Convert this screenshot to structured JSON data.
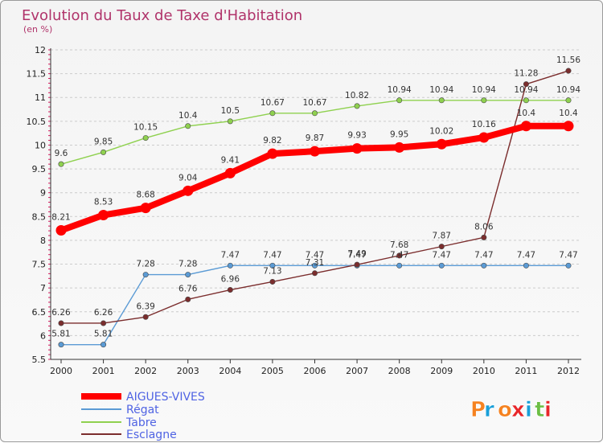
{
  "title": "Evolution du Taux de Taxe d'Habitation",
  "subtitle": "(en %)",
  "logo": "Proxiti",
  "colors": {
    "label_text": "#b0336a",
    "grid": "#cccccc",
    "minor_tick": "#d81b60",
    "legend_text": "#4f63e3"
  },
  "chart_data": {
    "type": "line",
    "title": "Evolution du Taux de Taxe d'Habitation",
    "ylabel": "(en %)",
    "xlabel": "",
    "x": [
      "2000",
      "2001",
      "2002",
      "2003",
      "2004",
      "2005",
      "2006",
      "2007",
      "2008",
      "2009",
      "2010",
      "2011",
      "2012"
    ],
    "ylim": [
      5.5,
      12
    ],
    "yticks": [
      "5.5",
      "6",
      "6.5",
      "7",
      "7.5",
      "8",
      "8.5",
      "9",
      "9.5",
      "10",
      "10.5",
      "11",
      "11.5",
      "12"
    ],
    "grid": "horizontal dashed",
    "legend": "bottom-left",
    "series": [
      {
        "name": "AIGUES-VIVES",
        "color": "#ff0000",
        "values": [
          8.21,
          8.53,
          8.68,
          9.04,
          9.41,
          9.82,
          9.87,
          9.93,
          9.95,
          10.02,
          10.16,
          10.4,
          10.4
        ],
        "labels": [
          "8.21",
          "8.53",
          "8.68",
          "9.04",
          "9.41",
          "9.82",
          "9.87",
          "9.93",
          "9.95",
          "10.02",
          "10.16",
          "10.4",
          "10.4"
        ]
      },
      {
        "name": "Régat",
        "color": "#5b9bd5",
        "values": [
          5.81,
          5.81,
          7.28,
          7.28,
          7.47,
          7.47,
          7.47,
          7.47,
          7.47,
          7.47,
          7.47,
          7.47,
          7.47
        ],
        "labels": [
          "5.81",
          "5.81",
          "7.28",
          "7.28",
          "7.47",
          "7.47",
          "7.47",
          "7.47",
          "7.47",
          "7.47",
          "7.47",
          "7.47",
          "7.47"
        ]
      },
      {
        "name": "Tabre",
        "color": "#8fd14f",
        "values": [
          9.6,
          9.85,
          10.15,
          10.4,
          10.5,
          10.67,
          10.67,
          10.82,
          10.94,
          10.94,
          10.94,
          10.94,
          10.94
        ],
        "labels": [
          "9.6",
          "9.85",
          "10.15",
          "10.4",
          "10.5",
          "10.67",
          "10.67",
          "10.82",
          "10.94",
          "10.94",
          "10.94",
          "10.94",
          "10.94"
        ]
      },
      {
        "name": "Esclagne",
        "color": "#7b2d2d",
        "values": [
          6.26,
          6.26,
          6.39,
          6.76,
          6.96,
          7.13,
          7.31,
          7.49,
          7.68,
          7.87,
          8.06,
          11.28,
          11.56
        ],
        "labels": [
          "6.26",
          "6.26",
          "6.39",
          "6.76",
          "6.96",
          "7.13",
          "7.31",
          "7.49",
          "7.68",
          "7.87",
          "8.06",
          "11.28",
          "11.56"
        ]
      }
    ]
  }
}
